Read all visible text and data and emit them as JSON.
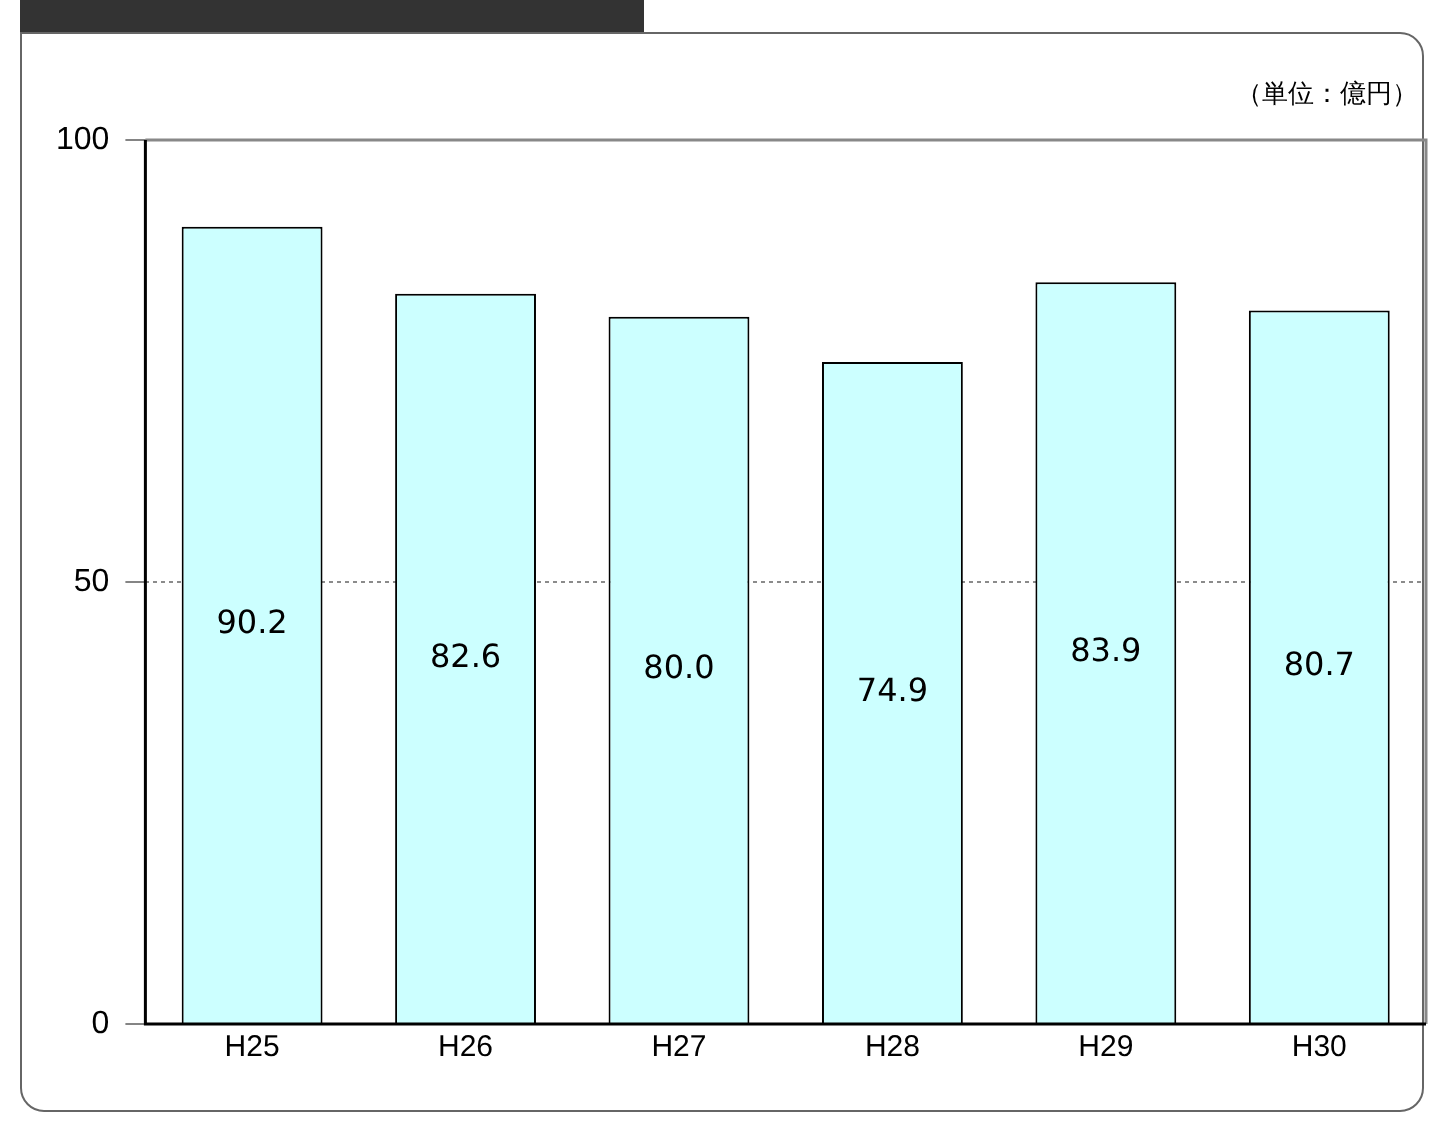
{
  "chart_data": {
    "type": "bar",
    "categories": [
      "H25",
      "H26",
      "H27",
      "H28",
      "H29",
      "H30"
    ],
    "values": [
      90.2,
      82.6,
      80.0,
      74.9,
      83.9,
      80.7
    ],
    "value_labels": [
      "90.2",
      "82.6",
      "80.0",
      "74.9",
      "83.9",
      "80.7"
    ],
    "color": "#ccffff",
    "ylim": [
      0,
      100
    ],
    "yticks": [
      0,
      50,
      100
    ],
    "grid": "y",
    "annotations": [
      "（単位：億円）"
    ]
  }
}
